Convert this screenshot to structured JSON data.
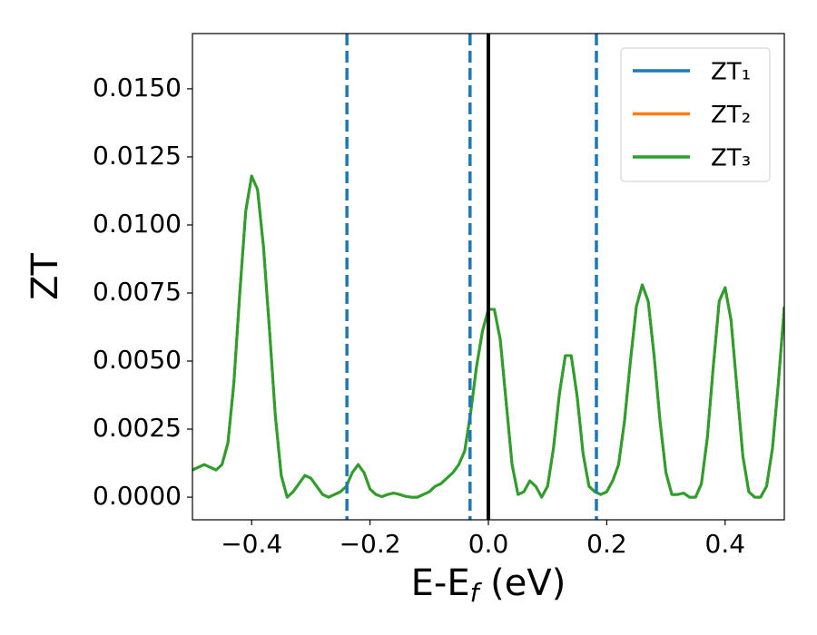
{
  "chart_data": {
    "type": "line",
    "xlabel": "E-E_f (eV)",
    "ylabel": "ZT",
    "xlim": [
      -0.5,
      0.5
    ],
    "ylim": [
      -0.00083,
      0.01703
    ],
    "xticks": [
      {
        "value": -0.4,
        "label": "−0.4"
      },
      {
        "value": -0.2,
        "label": "−0.2"
      },
      {
        "value": 0,
        "label": "0.0"
      },
      0.2,
      0.4
    ],
    "yticks": [
      {
        "value": 0,
        "label": "0.0000"
      },
      {
        "value": 0.0025,
        "label": "0.0025"
      },
      {
        "value": 0.005,
        "label": "0.0050"
      },
      {
        "value": 0.0075,
        "label": "0.0075"
      },
      {
        "value": 0.01,
        "label": "0.0100"
      },
      {
        "value": 0.0125,
        "label": "0.0125"
      },
      {
        "value": 0.015,
        "label": "0.0150"
      }
    ],
    "legend": "upper right",
    "vlines": [
      {
        "x": -0.239,
        "color": "#1f77b4",
        "dashed": true
      },
      {
        "x": -0.031,
        "color": "#1f77b4",
        "dashed": true
      },
      {
        "x": 0.1825,
        "color": "#1f77b4",
        "dashed": true
      },
      {
        "x": 0,
        "color": "#000000",
        "dashed": false
      }
    ],
    "x": [
      -0.5,
      -0.49,
      -0.48,
      -0.47,
      -0.46,
      -0.45,
      -0.44,
      -0.43,
      -0.42,
      -0.41,
      -0.4,
      -0.39,
      -0.38,
      -0.37,
      -0.36,
      -0.35,
      -0.34,
      -0.33,
      -0.32,
      -0.31,
      -0.3,
      -0.29,
      -0.28,
      -0.27,
      -0.26,
      -0.25,
      -0.24,
      -0.23,
      -0.22,
      -0.21,
      -0.2,
      -0.19,
      -0.18,
      -0.17,
      -0.16,
      -0.15,
      -0.14,
      -0.13,
      -0.12,
      -0.11,
      -0.1,
      -0.09,
      -0.08,
      -0.07,
      -0.06,
      -0.05,
      -0.04,
      -0.03,
      -0.02,
      -0.01,
      0,
      0.01,
      0.02,
      0.03,
      0.04,
      0.05,
      0.06,
      0.07,
      0.08,
      0.09,
      0.1,
      0.11,
      0.12,
      0.13,
      0.14,
      0.15,
      0.16,
      0.17,
      0.18,
      0.19,
      0.2,
      0.21,
      0.22,
      0.23,
      0.24,
      0.25,
      0.26,
      0.27,
      0.28,
      0.29,
      0.3,
      0.31,
      0.32,
      0.33,
      0.34,
      0.35,
      0.36,
      0.37,
      0.38,
      0.39,
      0.4,
      0.41,
      0.42,
      0.43,
      0.44,
      0.45,
      0.46,
      0.47,
      0.48,
      0.49,
      0.5
    ],
    "series": [
      {
        "name": "ZT₁",
        "color": "#1f77b4",
        "values": [
          0.001,
          0.0011,
          0.0012,
          0.0011,
          0.001,
          0.0012,
          0.002,
          0.0042,
          0.0075,
          0.0105,
          0.0118,
          0.0113,
          0.0092,
          0.0062,
          0.003,
          0.0008,
          0,
          0.0002,
          0.0005,
          0.0008,
          0.0007,
          0.0004,
          0.0001,
          0,
          0.0001,
          0.0002,
          0.0004,
          0.0009,
          0.0012,
          0.0009,
          0.0003,
          0.0001,
          2e-05,
          0.0001,
          0.00015,
          0.0001,
          3e-05,
          0,
          0,
          0.0001,
          0.0002,
          0.0004,
          0.0005,
          0.0007,
          0.0009,
          0.0012,
          0.0017,
          0.0031,
          0.0048,
          0.0061,
          0.0069,
          0.0069,
          0.0058,
          0.0035,
          0.0012,
          0.0001,
          0.0002,
          0.0006,
          0.0004,
          0,
          0.0004,
          0.0018,
          0.0038,
          0.0052,
          0.0052,
          0.0037,
          0.0016,
          0.0004,
          0.0002,
          0.0001,
          0.0002,
          0.0006,
          0.0012,
          0.0028,
          0.005,
          0.007,
          0.0078,
          0.0072,
          0.0052,
          0.0028,
          0.0009,
          0.0001,
          0.0001,
          0.00015,
          0,
          0,
          0.0005,
          0.0022,
          0.0048,
          0.0072,
          0.0077,
          0.0065,
          0.004,
          0.0015,
          0.0002,
          0,
          0,
          0.0004,
          0.0018,
          0.0042,
          0.007
        ]
      },
      {
        "name": "ZT₂",
        "color": "#ff7f0e",
        "values": [
          0.001,
          0.0011,
          0.0012,
          0.0011,
          0.001,
          0.0012,
          0.002,
          0.0042,
          0.0075,
          0.0105,
          0.0118,
          0.0113,
          0.0092,
          0.0062,
          0.003,
          0.0008,
          0,
          0.0002,
          0.0005,
          0.0008,
          0.0007,
          0.0004,
          0.0001,
          0,
          0.0001,
          0.0002,
          0.0004,
          0.0009,
          0.0012,
          0.0009,
          0.0003,
          0.0001,
          2e-05,
          0.0001,
          0.00015,
          0.0001,
          3e-05,
          0,
          0,
          0.0001,
          0.0002,
          0.0004,
          0.0005,
          0.0007,
          0.0009,
          0.0012,
          0.0017,
          0.0031,
          0.0048,
          0.0061,
          0.0069,
          0.0069,
          0.0058,
          0.0035,
          0.0012,
          0.0001,
          0.0002,
          0.0006,
          0.0004,
          0,
          0.0004,
          0.0018,
          0.0038,
          0.0052,
          0.0052,
          0.0037,
          0.0016,
          0.0004,
          0.0002,
          0.0001,
          0.0002,
          0.0006,
          0.0012,
          0.0028,
          0.005,
          0.007,
          0.0078,
          0.0072,
          0.0052,
          0.0028,
          0.0009,
          0.0001,
          0.0001,
          0.00015,
          0,
          0,
          0.0005,
          0.0022,
          0.0048,
          0.0072,
          0.0077,
          0.0065,
          0.004,
          0.0015,
          0.0002,
          0,
          0,
          0.0004,
          0.0018,
          0.0042,
          0.007
        ]
      },
      {
        "name": "ZT₃",
        "color": "#2ca02c",
        "values": [
          0.001,
          0.0011,
          0.0012,
          0.0011,
          0.001,
          0.0012,
          0.002,
          0.0042,
          0.0075,
          0.0105,
          0.0118,
          0.0113,
          0.0092,
          0.0062,
          0.003,
          0.0008,
          0,
          0.0002,
          0.0005,
          0.0008,
          0.0007,
          0.0004,
          0.0001,
          0,
          0.0001,
          0.0002,
          0.0004,
          0.0009,
          0.0012,
          0.0009,
          0.0003,
          0.0001,
          2e-05,
          0.0001,
          0.00015,
          0.0001,
          3e-05,
          0,
          0,
          0.0001,
          0.0002,
          0.0004,
          0.0005,
          0.0007,
          0.0009,
          0.0012,
          0.0017,
          0.0031,
          0.0048,
          0.0061,
          0.0069,
          0.0069,
          0.0058,
          0.0035,
          0.0012,
          0.0001,
          0.0002,
          0.0006,
          0.0004,
          0,
          0.0004,
          0.0018,
          0.0038,
          0.0052,
          0.0052,
          0.0037,
          0.0016,
          0.0004,
          0.0002,
          0.0001,
          0.0002,
          0.0006,
          0.0012,
          0.0028,
          0.005,
          0.007,
          0.0078,
          0.0072,
          0.0052,
          0.0028,
          0.0009,
          0.0001,
          0.0001,
          0.00015,
          0,
          0,
          0.0005,
          0.0022,
          0.0048,
          0.0072,
          0.0077,
          0.0065,
          0.004,
          0.0015,
          0.0002,
          0,
          0,
          0.0004,
          0.0018,
          0.0042,
          0.007
        ]
      }
    ]
  }
}
